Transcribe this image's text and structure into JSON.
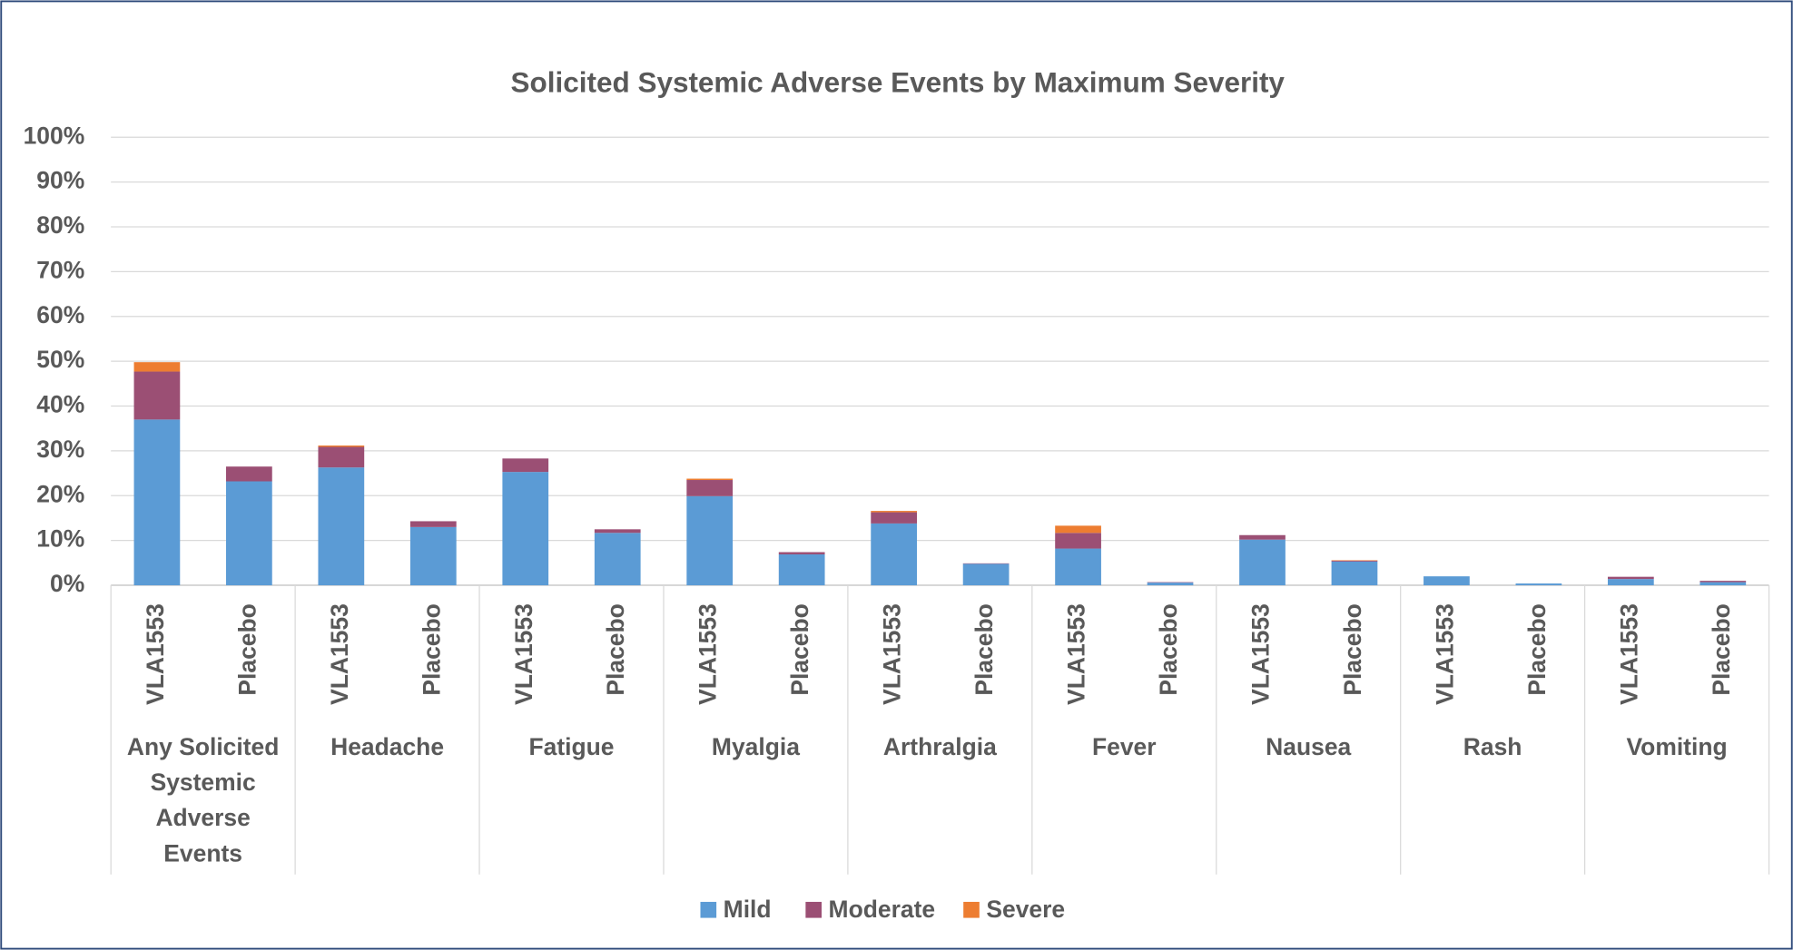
{
  "chart_data": {
    "type": "stacked_bar",
    "title": "Solicited Systemic Adverse Events by Maximum Severity",
    "categories": [
      "VLA1553",
      "Placebo",
      "VLA1553",
      "Placebo",
      "VLA1553",
      "Placebo",
      "VLA1553",
      "Placebo",
      "VLA1553",
      "Placebo",
      "VLA1553",
      "Placebo",
      "VLA1553",
      "Placebo",
      "VLA1553",
      "Placebo",
      "VLA1553",
      "Placebo"
    ],
    "groups": [
      "Any Solicited Systemic Adverse Events",
      "Headache",
      "Fatigue",
      "Myalgia",
      "Arthralgia",
      "Fever",
      "Nausea",
      "Rash",
      "Vomiting"
    ],
    "series": [
      {
        "name": "Mild",
        "color": "#5b9bd5",
        "values": [
          37.0,
          23.2,
          26.3,
          13.0,
          25.3,
          11.7,
          19.9,
          6.9,
          13.8,
          4.8,
          8.2,
          0.6,
          10.2,
          5.3,
          2.0,
          0.4,
          1.4,
          0.7
        ]
      },
      {
        "name": "Moderate",
        "color": "#9b4f74",
        "values": [
          10.7,
          3.3,
          4.6,
          1.3,
          3.0,
          0.8,
          3.6,
          0.5,
          2.5,
          0.1,
          3.5,
          0.1,
          1.0,
          0.2,
          0,
          0,
          0.5,
          0.3
        ]
      },
      {
        "name": "Severe",
        "color": "#ed7d31",
        "values": [
          2.1,
          0,
          0.3,
          0,
          0,
          0,
          0.3,
          0,
          0.3,
          0,
          1.6,
          0,
          0,
          0.1,
          0,
          0,
          0,
          0
        ]
      }
    ],
    "ylim": [
      0,
      100
    ],
    "yticks": [
      {
        "value": 0,
        "label": "0%"
      },
      {
        "value": 10,
        "label": "10%"
      },
      {
        "value": 20,
        "label": "20%"
      },
      {
        "value": 30,
        "label": "30%"
      },
      {
        "value": 40,
        "label": "40%"
      },
      {
        "value": 50,
        "label": "50%"
      },
      {
        "value": 60,
        "label": "60%"
      },
      {
        "value": 70,
        "label": "70%"
      },
      {
        "value": 80,
        "label": "80%"
      },
      {
        "value": 90,
        "label": "90%"
      },
      {
        "value": 100,
        "label": "100%"
      }
    ],
    "grid": true,
    "legend": "bottom"
  }
}
